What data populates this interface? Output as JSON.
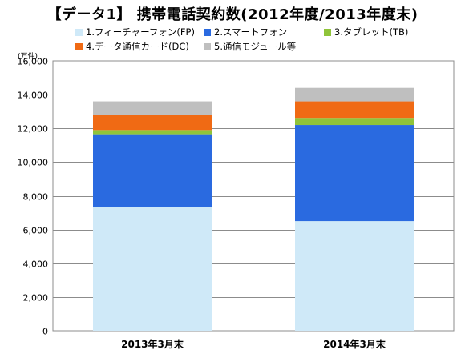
{
  "title": "【データ1】 携帯電話契約数(2012年度/2013年度末)",
  "unit_label": "(万件)",
  "colors": {
    "fp": "#cfe9f8",
    "sp": "#2a6ae0",
    "tb": "#8fc43a",
    "dc": "#f06a14",
    "other": "#bfbfbf"
  },
  "chart_data": {
    "type": "bar",
    "stacked": true,
    "categories": [
      "2013年3月末",
      "2014年3月末"
    ],
    "series": [
      {
        "name": "1.フィーチャーフォン(FP)",
        "color_key": "fp",
        "values": [
          7350,
          6500
        ]
      },
      {
        "name": "2.スマートフォン",
        "color_key": "sp",
        "values": [
          4300,
          5700
        ]
      },
      {
        "name": "3.タブレット(TB)",
        "color_key": "tb",
        "values": [
          250,
          420
        ]
      },
      {
        "name": "4.データ通信カード(DC)",
        "color_key": "dc",
        "values": [
          900,
          980
        ]
      },
      {
        "name": "5.通信モジュール等",
        "color_key": "other",
        "values": [
          800,
          800
        ]
      }
    ],
    "ylim": [
      0,
      16000
    ],
    "yticks": [
      0,
      2000,
      4000,
      6000,
      8000,
      10000,
      12000,
      14000,
      16000
    ],
    "ytick_labels": [
      "0",
      "2,000",
      "4,000",
      "6,000",
      "8,000",
      "10,000",
      "12,000",
      "14,000",
      "16,000"
    ],
    "grid": true,
    "legend_position": "top"
  }
}
